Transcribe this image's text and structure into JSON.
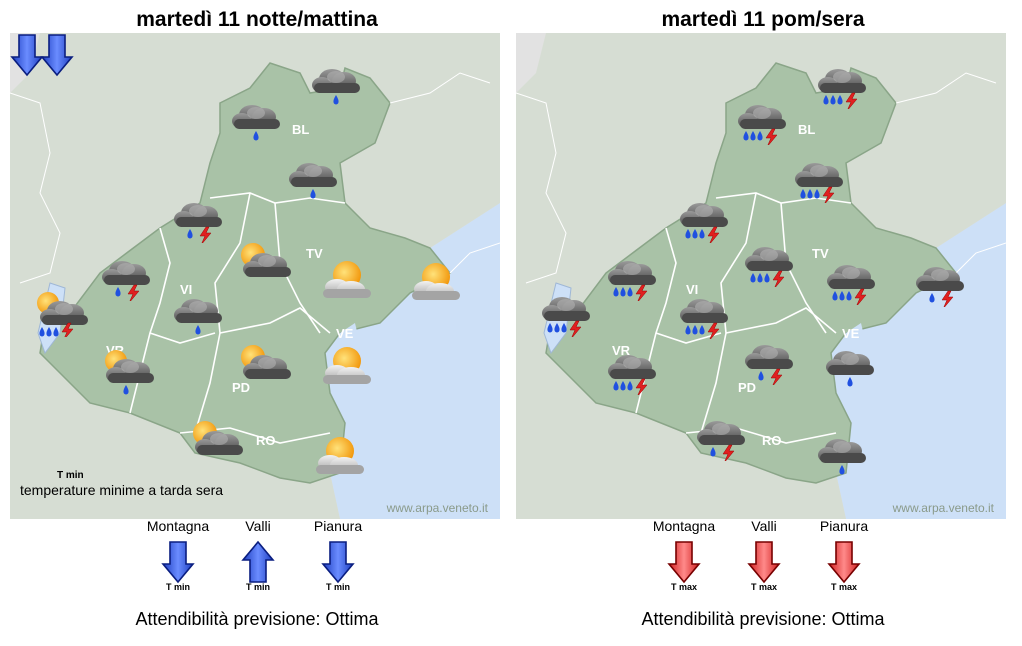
{
  "panels": [
    {
      "title": "martedì 11 notte/mattina",
      "regions": {
        "BL": "BL",
        "TV": "TV",
        "VI": "VI",
        "VR": "VR",
        "PD": "PD",
        "VE": "VE",
        "RO": "RO"
      },
      "credit": "www.arpa.veneto.it",
      "legend": {
        "label": "T min",
        "text": "temperature minime a tarda sera",
        "direction": "down",
        "color": "#3a6cf0"
      },
      "icons": [
        {
          "type": "rain-cloud"
        },
        {
          "type": "rain-cloud"
        },
        {
          "type": "rain-cloud"
        },
        {
          "type": "storm-cloud"
        },
        {
          "type": "sun-cloud"
        },
        {
          "type": "sun-cloud-light"
        },
        {
          "type": "sun-cloud-light"
        },
        {
          "type": "storm-cloud"
        },
        {
          "type": "rain-cloud"
        },
        {
          "type": "sun-rain-storm"
        },
        {
          "type": "sun-rain"
        },
        {
          "type": "sun-cloud"
        },
        {
          "type": "sun-cloud-light"
        },
        {
          "type": "sun-cloud"
        },
        {
          "type": "sun-cloud-light"
        }
      ],
      "zones": [
        {
          "label": "Montagna",
          "sub": "T min",
          "direction": "down",
          "color": "#3a6cf0"
        },
        {
          "label": "Valli",
          "sub": "T min",
          "direction": "up",
          "color": "#3a6cf0"
        },
        {
          "label": "Pianura",
          "sub": "T min",
          "direction": "down",
          "color": "#3a6cf0"
        }
      ],
      "reliability": "Attendibilità previsione: Ottima"
    },
    {
      "title": "martedì 11 pom/sera",
      "regions": {
        "BL": "BL",
        "TV": "TV",
        "VI": "VI",
        "VR": "VR",
        "PD": "PD",
        "VE": "VE",
        "RO": "RO"
      },
      "credit": "www.arpa.veneto.it",
      "icons": [
        {
          "type": "heavy-rain-storm"
        },
        {
          "type": "heavy-rain-storm"
        },
        {
          "type": "heavy-rain-storm"
        },
        {
          "type": "heavy-rain-storm"
        },
        {
          "type": "heavy-rain-storm"
        },
        {
          "type": "heavy-rain-storm"
        },
        {
          "type": "heavy-rain-storm"
        },
        {
          "type": "rain-storm"
        },
        {
          "type": "heavy-rain-storm"
        },
        {
          "type": "heavy-rain-storm"
        },
        {
          "type": "heavy-rain-storm"
        },
        {
          "type": "rain-storm"
        },
        {
          "type": "rain-cloud"
        },
        {
          "type": "rain-storm"
        },
        {
          "type": "rain-cloud"
        }
      ],
      "zones": [
        {
          "label": "Montagna",
          "sub": "T max",
          "direction": "down",
          "color": "#f04040"
        },
        {
          "label": "Valli",
          "sub": "T max",
          "direction": "down",
          "color": "#f04040"
        },
        {
          "label": "Pianura",
          "sub": "T max",
          "direction": "down",
          "color": "#f04040"
        }
      ],
      "reliability": "Attendibilità previsione: Ottima"
    }
  ],
  "colors": {
    "land": "#d2dccf",
    "veneto": "#a9c2a7",
    "sea": "#cde0f7",
    "background": "#e2e2e2",
    "border": "#ffffff"
  }
}
